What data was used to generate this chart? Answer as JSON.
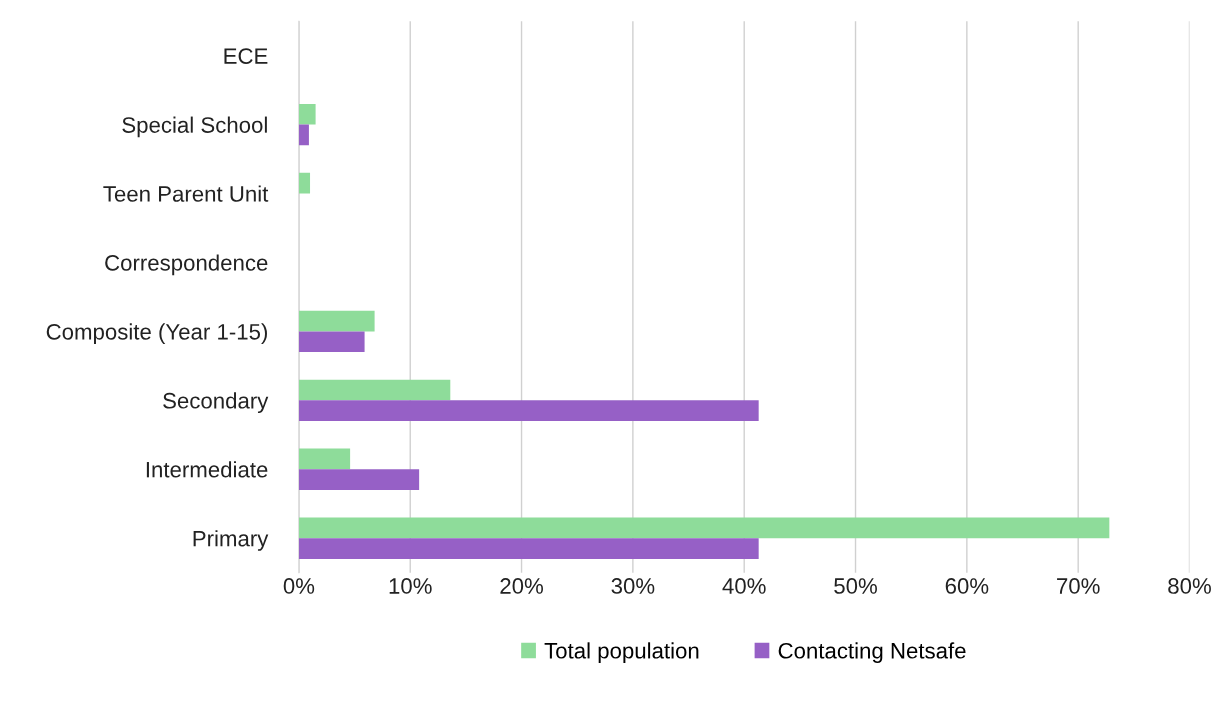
{
  "chart_data": {
    "type": "bar",
    "orientation": "horizontal",
    "categories": [
      "ECE",
      "Special School",
      "Teen Parent Unit",
      "Correspondence",
      "Composite (Year 1-15)",
      "Secondary",
      "Intermediate",
      "Primary"
    ],
    "series": [
      {
        "name": "Total population",
        "color": "#8edc9a",
        "values": [
          0,
          1.5,
          1.0,
          0,
          6.8,
          13.6,
          4.6,
          72.8
        ]
      },
      {
        "name": "Contacting Netsafe",
        "color": "#9660c6",
        "values": [
          0,
          0.9,
          0,
          0,
          5.9,
          41.3,
          10.8,
          41.3
        ]
      }
    ],
    "xlim": [
      0,
      80
    ],
    "xticks": [
      {
        "value": 0,
        "label": "0%"
      },
      {
        "value": 10,
        "label": "10%"
      },
      {
        "value": 20,
        "label": "20%"
      },
      {
        "value": 30,
        "label": "30%"
      },
      {
        "value": 40,
        "label": "40%"
      },
      {
        "value": 50,
        "label": "50%"
      },
      {
        "value": 60,
        "label": "60%"
      },
      {
        "value": 70,
        "label": "70%"
      },
      {
        "value": 80,
        "label": "80%"
      }
    ],
    "grid": "x",
    "legend": "bottom"
  }
}
